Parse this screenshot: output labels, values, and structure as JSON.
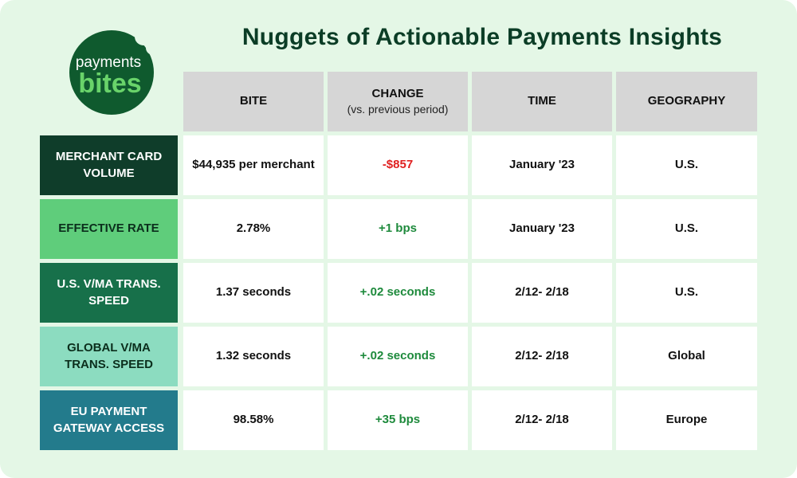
{
  "logo": {
    "line1": "payments",
    "line2": "bites"
  },
  "title": "Nuggets of Actionable Payments Insights",
  "headers": {
    "bite": "BITE",
    "change": "CHANGE",
    "change_sub": "(vs. previous period)",
    "time": "TIME",
    "geography": "GEOGRAPHY"
  },
  "rows": [
    {
      "label": "MERCHANT CARD VOLUME",
      "bite": "$44,935 per merchant",
      "change": "-$857",
      "change_tone": "negative",
      "time": "January '23",
      "geography": "U.S.",
      "color": "#0f3d2a",
      "text_color": "#ffffff"
    },
    {
      "label": "EFFECTIVE RATE",
      "bite": "2.78%",
      "change": "+1 bps",
      "change_tone": "positive",
      "time": "January '23",
      "geography": "U.S.",
      "color": "#5fcd7b",
      "text_color": "#0b2e1c"
    },
    {
      "label": "U.S. V/MA TRANS. SPEED",
      "bite": "1.37 seconds",
      "change": "+.02 seconds",
      "change_tone": "positive",
      "time": "2/12- 2/18",
      "geography": "U.S.",
      "color": "#17704a",
      "text_color": "#ffffff"
    },
    {
      "label": "GLOBAL V/MA TRANS. SPEED",
      "bite": "1.32 seconds",
      "change": "+.02 seconds",
      "change_tone": "positive",
      "time": "2/12- 2/18",
      "geography": "Global",
      "color": "#8cdcc0",
      "text_color": "#0b2e1c"
    },
    {
      "label": "EU PAYMENT GATEWAY ACCESS",
      "bite": "98.58%",
      "change": "+35 bps",
      "change_tone": "positive",
      "time": "2/12- 2/18",
      "geography": "Europe",
      "color": "#237b8c",
      "text_color": "#ffffff"
    }
  ]
}
